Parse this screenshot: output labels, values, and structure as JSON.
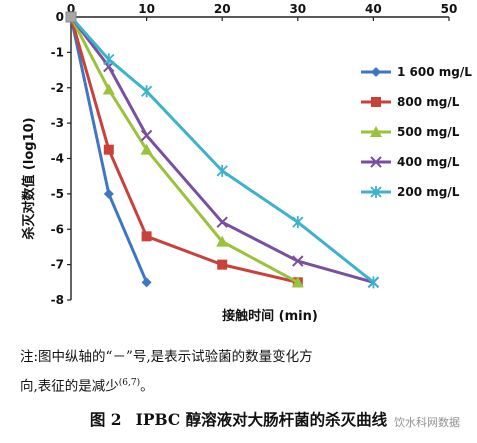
{
  "chart_data": {
    "type": "line",
    "title": "",
    "xlabel": "接触时间 (min)",
    "ylabel": "杀灭对数值 (log10)",
    "xlim": [
      0,
      50
    ],
    "ylim": [
      -8,
      0
    ],
    "xticks": [
      0,
      10,
      20,
      30,
      40,
      50
    ],
    "yticks": [
      0,
      -1,
      -2,
      -3,
      -4,
      -5,
      -6,
      -7,
      -8
    ],
    "grid": false,
    "legend_position": "right",
    "series": [
      {
        "name": "1 600 mg/L",
        "color": "#3f77c4",
        "marker": "diamond",
        "x": [
          0,
          5,
          10
        ],
        "y": [
          0,
          -5.0,
          -7.5
        ]
      },
      {
        "name": "800 mg/L",
        "color": "#c9413b",
        "marker": "square",
        "x": [
          0,
          5,
          10,
          20,
          30
        ],
        "y": [
          0,
          -3.75,
          -6.2,
          -7.0,
          -7.5
        ]
      },
      {
        "name": "500 mg/L",
        "color": "#9bc23c",
        "marker": "triangle",
        "x": [
          0,
          5,
          10,
          20,
          30
        ],
        "y": [
          0,
          -2.05,
          -3.75,
          -6.35,
          -7.5
        ]
      },
      {
        "name": "400 mg/L",
        "color": "#7b4fa0",
        "marker": "x",
        "x": [
          0,
          5,
          10,
          20,
          30,
          40
        ],
        "y": [
          0,
          -1.4,
          -3.35,
          -5.8,
          -6.9,
          -7.5
        ]
      },
      {
        "name": "200 mg/L",
        "color": "#3cb2cc",
        "marker": "star",
        "x": [
          0,
          5,
          10,
          20,
          30,
          40
        ],
        "y": [
          0,
          -1.2,
          -2.1,
          -4.35,
          -5.8,
          -7.5
        ]
      }
    ]
  },
  "note": {
    "line1": "注:图中纵轴的“－”号,是表示试验菌的数量变化方",
    "line2": "向,表征的是减少",
    "ref": "(6,7)",
    "end": "。"
  },
  "caption": {
    "figure_number": "图 2",
    "text": "IPBC 醇溶液对大肠杆菌的杀灭曲线"
  },
  "watermark": "饮水科网数据"
}
